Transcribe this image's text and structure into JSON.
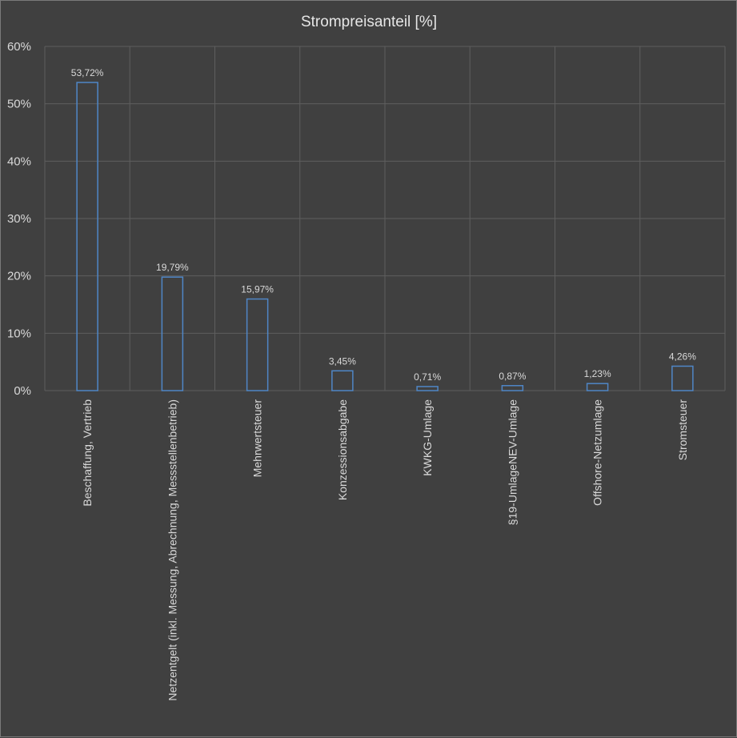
{
  "chart_data": {
    "type": "bar",
    "title": "Strompreisanteil [%]",
    "xlabel": "",
    "ylabel": "",
    "ylim": [
      0,
      60
    ],
    "yticks": [
      0,
      10,
      20,
      30,
      40,
      50,
      60
    ],
    "ytick_labels": [
      "0%",
      "10%",
      "20%",
      "30%",
      "40%",
      "50%",
      "60%"
    ],
    "grid": true,
    "categories": [
      "Beschaffung, Vertrieb",
      "Netzentgelt (inkl. Messung, Abrechnung, Messstellenbetrieb)",
      "Mehrwertsteuer",
      "Konzessionsabgabe",
      "KWKG-Umlage",
      "§19-UmlageNEV-Umlage",
      "Offshore-Netzumlage",
      "Stromsteuer"
    ],
    "values": [
      53.72,
      19.79,
      15.97,
      3.45,
      0.71,
      0.87,
      1.23,
      4.26
    ],
    "data_labels": [
      "53,72%",
      "19,79%",
      "15,97%",
      "3,45%",
      "0,71%",
      "0,87%",
      "1,23%",
      "4,26%"
    ],
    "colors": {
      "bar_stroke": "#4f86c6",
      "background": "#404040",
      "grid": "#5e5e5e",
      "text": "#d9d9d9"
    }
  }
}
